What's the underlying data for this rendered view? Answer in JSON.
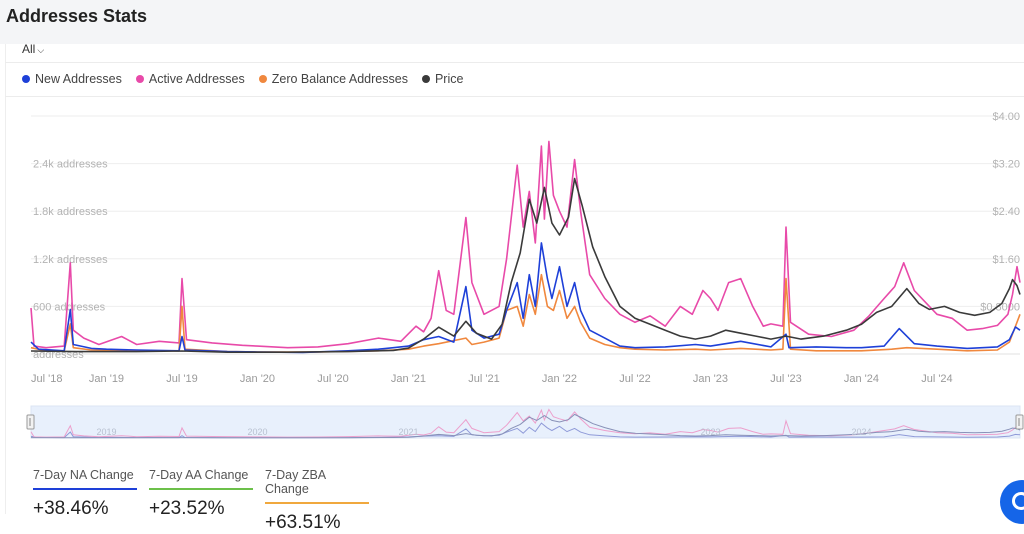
{
  "page": {
    "title": "Addresses Stats"
  },
  "range_select": {
    "value": "All"
  },
  "legend": [
    {
      "label": "New Addresses",
      "color": "#1e40d8"
    },
    {
      "label": "Active Addresses",
      "color": "#e84aa9"
    },
    {
      "label": "Zero Balance Addresses",
      "color": "#f0883e"
    },
    {
      "label": "Price",
      "color": "#3a3a3a"
    }
  ],
  "chart_data": {
    "type": "line",
    "left_axis_ticks": [
      "addresses",
      "600 addresses",
      "1.2k addresses",
      "1.8k addresses",
      "2.4k addresses"
    ],
    "left_axis_values": [
      0,
      600,
      1200,
      1800,
      2400
    ],
    "right_axis_ticks": [
      "$0.8000",
      "$1.60",
      "$2.40",
      "$3.20",
      "$4.00"
    ],
    "right_axis_values": [
      0.8,
      1.6,
      2.4,
      3.2,
      4.0
    ],
    "ylim_left": [
      0,
      3000
    ],
    "ylim_right": [
      0,
      4.0
    ],
    "x_ticks": [
      "Jul '18",
      "Jan '19",
      "Jul '19",
      "Jan '20",
      "Jul '20",
      "Jan '21",
      "Jul '21",
      "Jan '22",
      "Jul '22",
      "Jan '23",
      "Jul '23",
      "Jan '24",
      "Jul '24"
    ],
    "x_tick_values": [
      2018.5,
      2019.0,
      2019.5,
      2020.0,
      2020.5,
      2021.0,
      2021.5,
      2022.0,
      2022.5,
      2023.0,
      2023.5,
      2024.0,
      2024.5
    ],
    "xlim": [
      2018.5,
      2025.05
    ],
    "grid": true,
    "legend_position": "top-left",
    "series": [
      {
        "name": "New Addresses",
        "color": "#1e40d8",
        "axis": "left",
        "points": [
          [
            2018.5,
            150
          ],
          [
            2018.55,
            60
          ],
          [
            2018.72,
            40
          ],
          [
            2018.76,
            560
          ],
          [
            2018.78,
            120
          ],
          [
            2018.9,
            70
          ],
          [
            2019.0,
            60
          ],
          [
            2019.2,
            50
          ],
          [
            2019.48,
            40
          ],
          [
            2019.5,
            220
          ],
          [
            2019.52,
            50
          ],
          [
            2019.8,
            30
          ],
          [
            2020.0,
            25
          ],
          [
            2020.3,
            20
          ],
          [
            2020.6,
            40
          ],
          [
            2020.8,
            60
          ],
          [
            2020.9,
            80
          ],
          [
            2021.0,
            100
          ],
          [
            2021.1,
            180
          ],
          [
            2021.2,
            220
          ],
          [
            2021.3,
            150
          ],
          [
            2021.38,
            850
          ],
          [
            2021.42,
            300
          ],
          [
            2021.5,
            200
          ],
          [
            2021.6,
            250
          ],
          [
            2021.65,
            550
          ],
          [
            2021.72,
            900
          ],
          [
            2021.76,
            450
          ],
          [
            2021.8,
            1000
          ],
          [
            2021.84,
            600
          ],
          [
            2021.88,
            1400
          ],
          [
            2021.92,
            950
          ],
          [
            2021.95,
            700
          ],
          [
            2022.0,
            1100
          ],
          [
            2022.05,
            600
          ],
          [
            2022.1,
            900
          ],
          [
            2022.14,
            550
          ],
          [
            2022.2,
            300
          ],
          [
            2022.3,
            200
          ],
          [
            2022.4,
            100
          ],
          [
            2022.5,
            80
          ],
          [
            2022.7,
            90
          ],
          [
            2022.9,
            120
          ],
          [
            2023.0,
            100
          ],
          [
            2023.2,
            160
          ],
          [
            2023.4,
            90
          ],
          [
            2023.5,
            250
          ],
          [
            2023.52,
            80
          ],
          [
            2023.7,
            90
          ],
          [
            2023.9,
            80
          ],
          [
            2024.0,
            80
          ],
          [
            2024.15,
            100
          ],
          [
            2024.25,
            320
          ],
          [
            2024.35,
            130
          ],
          [
            2024.5,
            100
          ],
          [
            2024.7,
            70
          ],
          [
            2024.9,
            90
          ],
          [
            2024.98,
            180
          ],
          [
            2025.02,
            340
          ],
          [
            2025.05,
            300
          ]
        ]
      },
      {
        "name": "Active Addresses",
        "color": "#e84aa9",
        "axis": "left",
        "points": [
          [
            2018.5,
            580
          ],
          [
            2018.52,
            100
          ],
          [
            2018.6,
            80
          ],
          [
            2018.72,
            100
          ],
          [
            2018.76,
            1150
          ],
          [
            2018.78,
            300
          ],
          [
            2018.85,
            200
          ],
          [
            2018.95,
            120
          ],
          [
            2019.1,
            220
          ],
          [
            2019.2,
            120
          ],
          [
            2019.35,
            160
          ],
          [
            2019.48,
            140
          ],
          [
            2019.5,
            950
          ],
          [
            2019.53,
            180
          ],
          [
            2019.7,
            140
          ],
          [
            2019.9,
            110
          ],
          [
            2020.0,
            100
          ],
          [
            2020.2,
            80
          ],
          [
            2020.4,
            90
          ],
          [
            2020.6,
            130
          ],
          [
            2020.8,
            200
          ],
          [
            2020.95,
            160
          ],
          [
            2021.05,
            350
          ],
          [
            2021.1,
            280
          ],
          [
            2021.15,
            450
          ],
          [
            2021.2,
            1050
          ],
          [
            2021.25,
            550
          ],
          [
            2021.3,
            500
          ],
          [
            2021.38,
            1720
          ],
          [
            2021.42,
            900
          ],
          [
            2021.5,
            500
          ],
          [
            2021.6,
            600
          ],
          [
            2021.65,
            1200
          ],
          [
            2021.72,
            2380
          ],
          [
            2021.76,
            1600
          ],
          [
            2021.8,
            2050
          ],
          [
            2021.84,
            1400
          ],
          [
            2021.88,
            2620
          ],
          [
            2021.9,
            1700
          ],
          [
            2021.93,
            2680
          ],
          [
            2021.96,
            2000
          ],
          [
            2022.0,
            1800
          ],
          [
            2022.05,
            1600
          ],
          [
            2022.1,
            2450
          ],
          [
            2022.14,
            1800
          ],
          [
            2022.2,
            1000
          ],
          [
            2022.3,
            700
          ],
          [
            2022.4,
            500
          ],
          [
            2022.5,
            400
          ],
          [
            2022.6,
            480
          ],
          [
            2022.7,
            350
          ],
          [
            2022.8,
            600
          ],
          [
            2022.88,
            500
          ],
          [
            2022.95,
            800
          ],
          [
            2023.0,
            700
          ],
          [
            2023.05,
            550
          ],
          [
            2023.12,
            900
          ],
          [
            2023.2,
            950
          ],
          [
            2023.28,
            600
          ],
          [
            2023.35,
            350
          ],
          [
            2023.4,
            380
          ],
          [
            2023.48,
            350
          ],
          [
            2023.5,
            1600
          ],
          [
            2023.53,
            400
          ],
          [
            2023.65,
            250
          ],
          [
            2023.8,
            220
          ],
          [
            2023.95,
            300
          ],
          [
            2024.05,
            480
          ],
          [
            2024.15,
            700
          ],
          [
            2024.22,
            850
          ],
          [
            2024.28,
            1150
          ],
          [
            2024.35,
            800
          ],
          [
            2024.45,
            600
          ],
          [
            2024.5,
            500
          ],
          [
            2024.6,
            450
          ],
          [
            2024.7,
            300
          ],
          [
            2024.8,
            320
          ],
          [
            2024.9,
            360
          ],
          [
            2024.97,
            500
          ],
          [
            2025.0,
            750
          ],
          [
            2025.03,
            1100
          ],
          [
            2025.05,
            900
          ]
        ]
      },
      {
        "name": "Zero Balance Addresses",
        "color": "#f0883e",
        "axis": "left",
        "points": [
          [
            2018.5,
            80
          ],
          [
            2018.6,
            40
          ],
          [
            2018.72,
            40
          ],
          [
            2018.76,
            380
          ],
          [
            2018.78,
            80
          ],
          [
            2018.9,
            50
          ],
          [
            2019.2,
            40
          ],
          [
            2019.48,
            40
          ],
          [
            2019.5,
            600
          ],
          [
            2019.52,
            60
          ],
          [
            2019.8,
            30
          ],
          [
            2020.0,
            25
          ],
          [
            2020.4,
            25
          ],
          [
            2020.8,
            40
          ],
          [
            2021.0,
            60
          ],
          [
            2021.1,
            100
          ],
          [
            2021.2,
            130
          ],
          [
            2021.38,
            200
          ],
          [
            2021.42,
            120
          ],
          [
            2021.5,
            150
          ],
          [
            2021.6,
            200
          ],
          [
            2021.65,
            550
          ],
          [
            2021.72,
            600
          ],
          [
            2021.76,
            350
          ],
          [
            2021.8,
            750
          ],
          [
            2021.84,
            500
          ],
          [
            2021.88,
            1000
          ],
          [
            2021.92,
            600
          ],
          [
            2021.96,
            550
          ],
          [
            2022.0,
            800
          ],
          [
            2022.05,
            450
          ],
          [
            2022.1,
            600
          ],
          [
            2022.14,
            400
          ],
          [
            2022.2,
            200
          ],
          [
            2022.3,
            120
          ],
          [
            2022.4,
            80
          ],
          [
            2022.5,
            60
          ],
          [
            2022.7,
            50
          ],
          [
            2022.9,
            60
          ],
          [
            2023.0,
            50
          ],
          [
            2023.2,
            70
          ],
          [
            2023.4,
            50
          ],
          [
            2023.48,
            60
          ],
          [
            2023.5,
            950
          ],
          [
            2023.53,
            60
          ],
          [
            2023.7,
            40
          ],
          [
            2023.9,
            40
          ],
          [
            2024.0,
            40
          ],
          [
            2024.2,
            60
          ],
          [
            2024.3,
            80
          ],
          [
            2024.5,
            60
          ],
          [
            2024.7,
            40
          ],
          [
            2024.9,
            50
          ],
          [
            2024.98,
            150
          ],
          [
            2025.02,
            350
          ],
          [
            2025.05,
            500
          ]
        ]
      },
      {
        "name": "Price",
        "color": "#3a3a3a",
        "axis": "right",
        "points": [
          [
            2018.5,
            0.05
          ],
          [
            2018.8,
            0.04
          ],
          [
            2019.2,
            0.04
          ],
          [
            2019.5,
            0.05
          ],
          [
            2019.8,
            0.03
          ],
          [
            2020.2,
            0.03
          ],
          [
            2020.6,
            0.04
          ],
          [
            2020.9,
            0.06
          ],
          [
            2021.0,
            0.1
          ],
          [
            2021.1,
            0.25
          ],
          [
            2021.2,
            0.45
          ],
          [
            2021.3,
            0.3
          ],
          [
            2021.38,
            0.55
          ],
          [
            2021.45,
            0.35
          ],
          [
            2021.55,
            0.25
          ],
          [
            2021.62,
            0.5
          ],
          [
            2021.68,
            1.2
          ],
          [
            2021.74,
            1.7
          ],
          [
            2021.8,
            2.6
          ],
          [
            2021.85,
            2.2
          ],
          [
            2021.9,
            2.8
          ],
          [
            2021.95,
            2.2
          ],
          [
            2022.0,
            2.0
          ],
          [
            2022.06,
            2.3
          ],
          [
            2022.1,
            2.95
          ],
          [
            2022.15,
            2.5
          ],
          [
            2022.22,
            1.8
          ],
          [
            2022.3,
            1.3
          ],
          [
            2022.4,
            0.8
          ],
          [
            2022.5,
            0.6
          ],
          [
            2022.6,
            0.5
          ],
          [
            2022.7,
            0.4
          ],
          [
            2022.8,
            0.3
          ],
          [
            2022.9,
            0.25
          ],
          [
            2023.0,
            0.3
          ],
          [
            2023.1,
            0.4
          ],
          [
            2023.2,
            0.35
          ],
          [
            2023.3,
            0.3
          ],
          [
            2023.4,
            0.25
          ],
          [
            2023.5,
            0.3
          ],
          [
            2023.6,
            0.25
          ],
          [
            2023.75,
            0.3
          ],
          [
            2023.9,
            0.4
          ],
          [
            2024.0,
            0.5
          ],
          [
            2024.1,
            0.7
          ],
          [
            2024.2,
            0.8
          ],
          [
            2024.3,
            1.1
          ],
          [
            2024.38,
            0.85
          ],
          [
            2024.45,
            0.75
          ],
          [
            2024.55,
            0.8
          ],
          [
            2024.65,
            0.7
          ],
          [
            2024.75,
            0.65
          ],
          [
            2024.85,
            0.7
          ],
          [
            2024.93,
            0.85
          ],
          [
            2024.98,
            1.1
          ],
          [
            2025.0,
            1.25
          ],
          [
            2025.03,
            1.15
          ],
          [
            2025.05,
            1.0
          ]
        ]
      }
    ],
    "navigator_ticks": [
      "2019",
      "2020",
      "2021",
      "2023",
      "2024"
    ],
    "navigator_tick_values": [
      2019.0,
      2020.0,
      2021.0,
      2023.0,
      2024.0
    ]
  },
  "stats": [
    {
      "label": "7-Day NA Change",
      "value": "+38.46%",
      "color": "#1e40d8"
    },
    {
      "label": "7-Day AA Change",
      "value": "+23.52%",
      "color": "#6cc04a"
    },
    {
      "label": "7-Day ZBA Change",
      "value": "+63.51%",
      "color": "#f0a83e"
    }
  ]
}
